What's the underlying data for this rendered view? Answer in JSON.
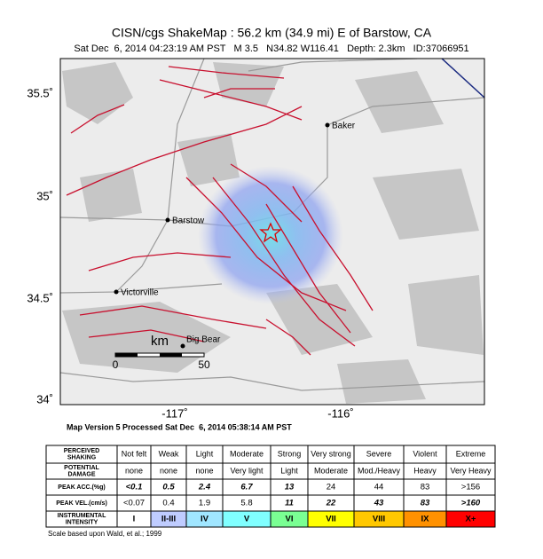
{
  "header": {
    "title": "CISN/cgs ShakeMap : 56.2 km (34.9 mi) E of Barstow, CA",
    "subtitle": "Sat Dec  6, 2014 04:23:19 AM PST   M 3.5   N34.82 W116.41   Depth: 2.3km   ID:37066951"
  },
  "map": {
    "lat_labels": [
      "35.5˚",
      "35˚",
      "34.5˚",
      "34˚"
    ],
    "lon_labels": [
      "-117˚",
      "-116˚"
    ],
    "cities": [
      "Baker",
      "Barstow",
      "Victorville",
      "Big Bear"
    ],
    "scale": {
      "unit": "km",
      "start": "0",
      "end": "50"
    },
    "version_note": "Map Version 5 Processed Sat Dec  6, 2014 05:38:14 AM PST"
  },
  "legend": {
    "rows": [
      {
        "label": [
          "PERCEIVED",
          "SHAKING"
        ],
        "cells": [
          "Not felt",
          "Weak",
          "Light",
          "Moderate",
          "Strong",
          "Very strong",
          "Severe",
          "Violent",
          "Extreme"
        ]
      },
      {
        "label": [
          "POTENTIAL",
          "DAMAGE"
        ],
        "cells": [
          "none",
          "none",
          "none",
          "Very light",
          "Light",
          "Moderate",
          "Mod./Heavy",
          "Heavy",
          "Very Heavy"
        ]
      },
      {
        "label": [
          "PEAK ACC.(%g)"
        ],
        "cells": [
          "<0.1",
          "0.5",
          "2.4",
          "6.7",
          "13",
          "24",
          "44",
          "83",
          ">156"
        ]
      },
      {
        "label": [
          "PEAK VEL.(cm/s)"
        ],
        "cells": [
          "<0.07",
          "0.4",
          "1.9",
          "5.8",
          "11",
          "22",
          "43",
          "83",
          ">160"
        ]
      },
      {
        "label": [
          "INSTRUMENTAL",
          "INTENSITY"
        ],
        "cells": [
          "I",
          "II-III",
          "IV",
          "V",
          "VI",
          "VII",
          "VIII",
          "IX",
          "X+"
        ]
      }
    ],
    "intensity_colors": [
      "#ffffff",
      "#bfccff",
      "#a0e6ff",
      "#80ffff",
      "#7aff93",
      "#ffff00",
      "#ffc800",
      "#ff9100",
      "#ff0000"
    ],
    "footnote": "Scale based upon Wald, et al.; 1999"
  }
}
